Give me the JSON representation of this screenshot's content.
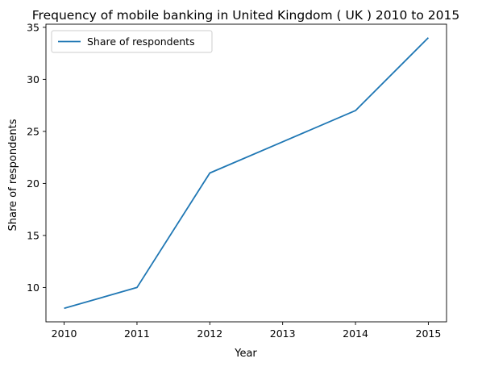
{
  "chart_data": {
    "type": "line",
    "title": "Frequency of mobile banking in United Kingdom ( UK ) 2010 to 2015",
    "xlabel": "Year",
    "ylabel": "Share of respondents",
    "x": [
      2010,
      2011,
      2012,
      2013,
      2014,
      2015
    ],
    "series": [
      {
        "name": "Share of respondents",
        "values": [
          8,
          10,
          21,
          24,
          27,
          34
        ],
        "color": "#1f77b4"
      }
    ],
    "xticks": [
      2010,
      2011,
      2012,
      2013,
      2014,
      2015
    ],
    "yticks": [
      10,
      15,
      20,
      25,
      30,
      35
    ],
    "xlim": [
      2009.75,
      2015.25
    ],
    "ylim": [
      6.7,
      35.3
    ],
    "grid": false,
    "legend": "upper-left"
  }
}
